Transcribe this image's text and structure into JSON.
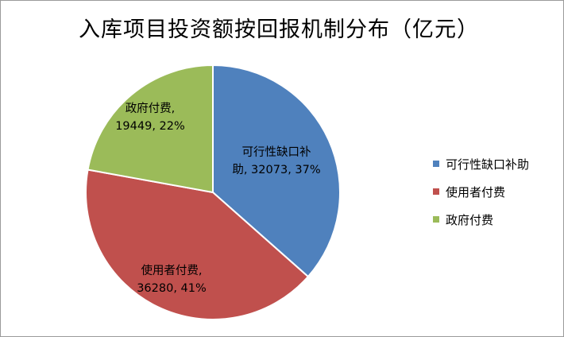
{
  "chart_data": {
    "type": "pie",
    "title": "入库项目投资额按回报机制分布（亿元）",
    "categories": [
      "可行性缺口补助",
      "使用者付费",
      "政府付费"
    ],
    "values": [
      32073,
      36280,
      19449
    ],
    "percents": [
      "37%",
      "41%",
      "22%"
    ],
    "colors": [
      "#4f81bd",
      "#c0504d",
      "#9bbb59"
    ],
    "data_labels": [
      {
        "line1": "可行性缺口补",
        "line2": "助, 32073, 37%"
      },
      {
        "line1": "使用者付费,",
        "line2": "36280, 41%"
      },
      {
        "line1": "政府付费,",
        "line2": "19449, 22%"
      }
    ],
    "legend": {
      "placement": "right",
      "items": [
        "可行性缺口补助",
        "使用者付费",
        "政府付费"
      ]
    },
    "start_angle": "12 o'clock",
    "direction": "clockwise"
  }
}
